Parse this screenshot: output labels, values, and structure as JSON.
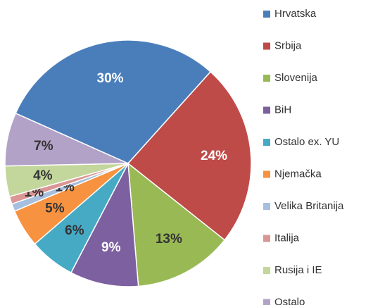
{
  "chart_data": {
    "type": "pie",
    "categories": [
      "Hrvatska",
      "Srbija",
      "Slovenija",
      "BiH",
      "Ostalo ex. YU",
      "Njemačka",
      "Velika Britanija",
      "Italija",
      "Rusija i IE",
      "Ostalo"
    ],
    "values": [
      30,
      24,
      13,
      9,
      6,
      5,
      1,
      1,
      4,
      7
    ],
    "value_labels": [
      "30%",
      "24%",
      "13%",
      "9%",
      "6%",
      "5%",
      "1%",
      "1%",
      "4%",
      "7%"
    ],
    "colors": [
      "#4a7ebb",
      "#be4b48",
      "#98b954",
      "#7d60a0",
      "#46aac5",
      "#f69240",
      "#a7bfde",
      "#da9694",
      "#c3d69b",
      "#b3a2c7"
    ],
    "legend": "right"
  }
}
